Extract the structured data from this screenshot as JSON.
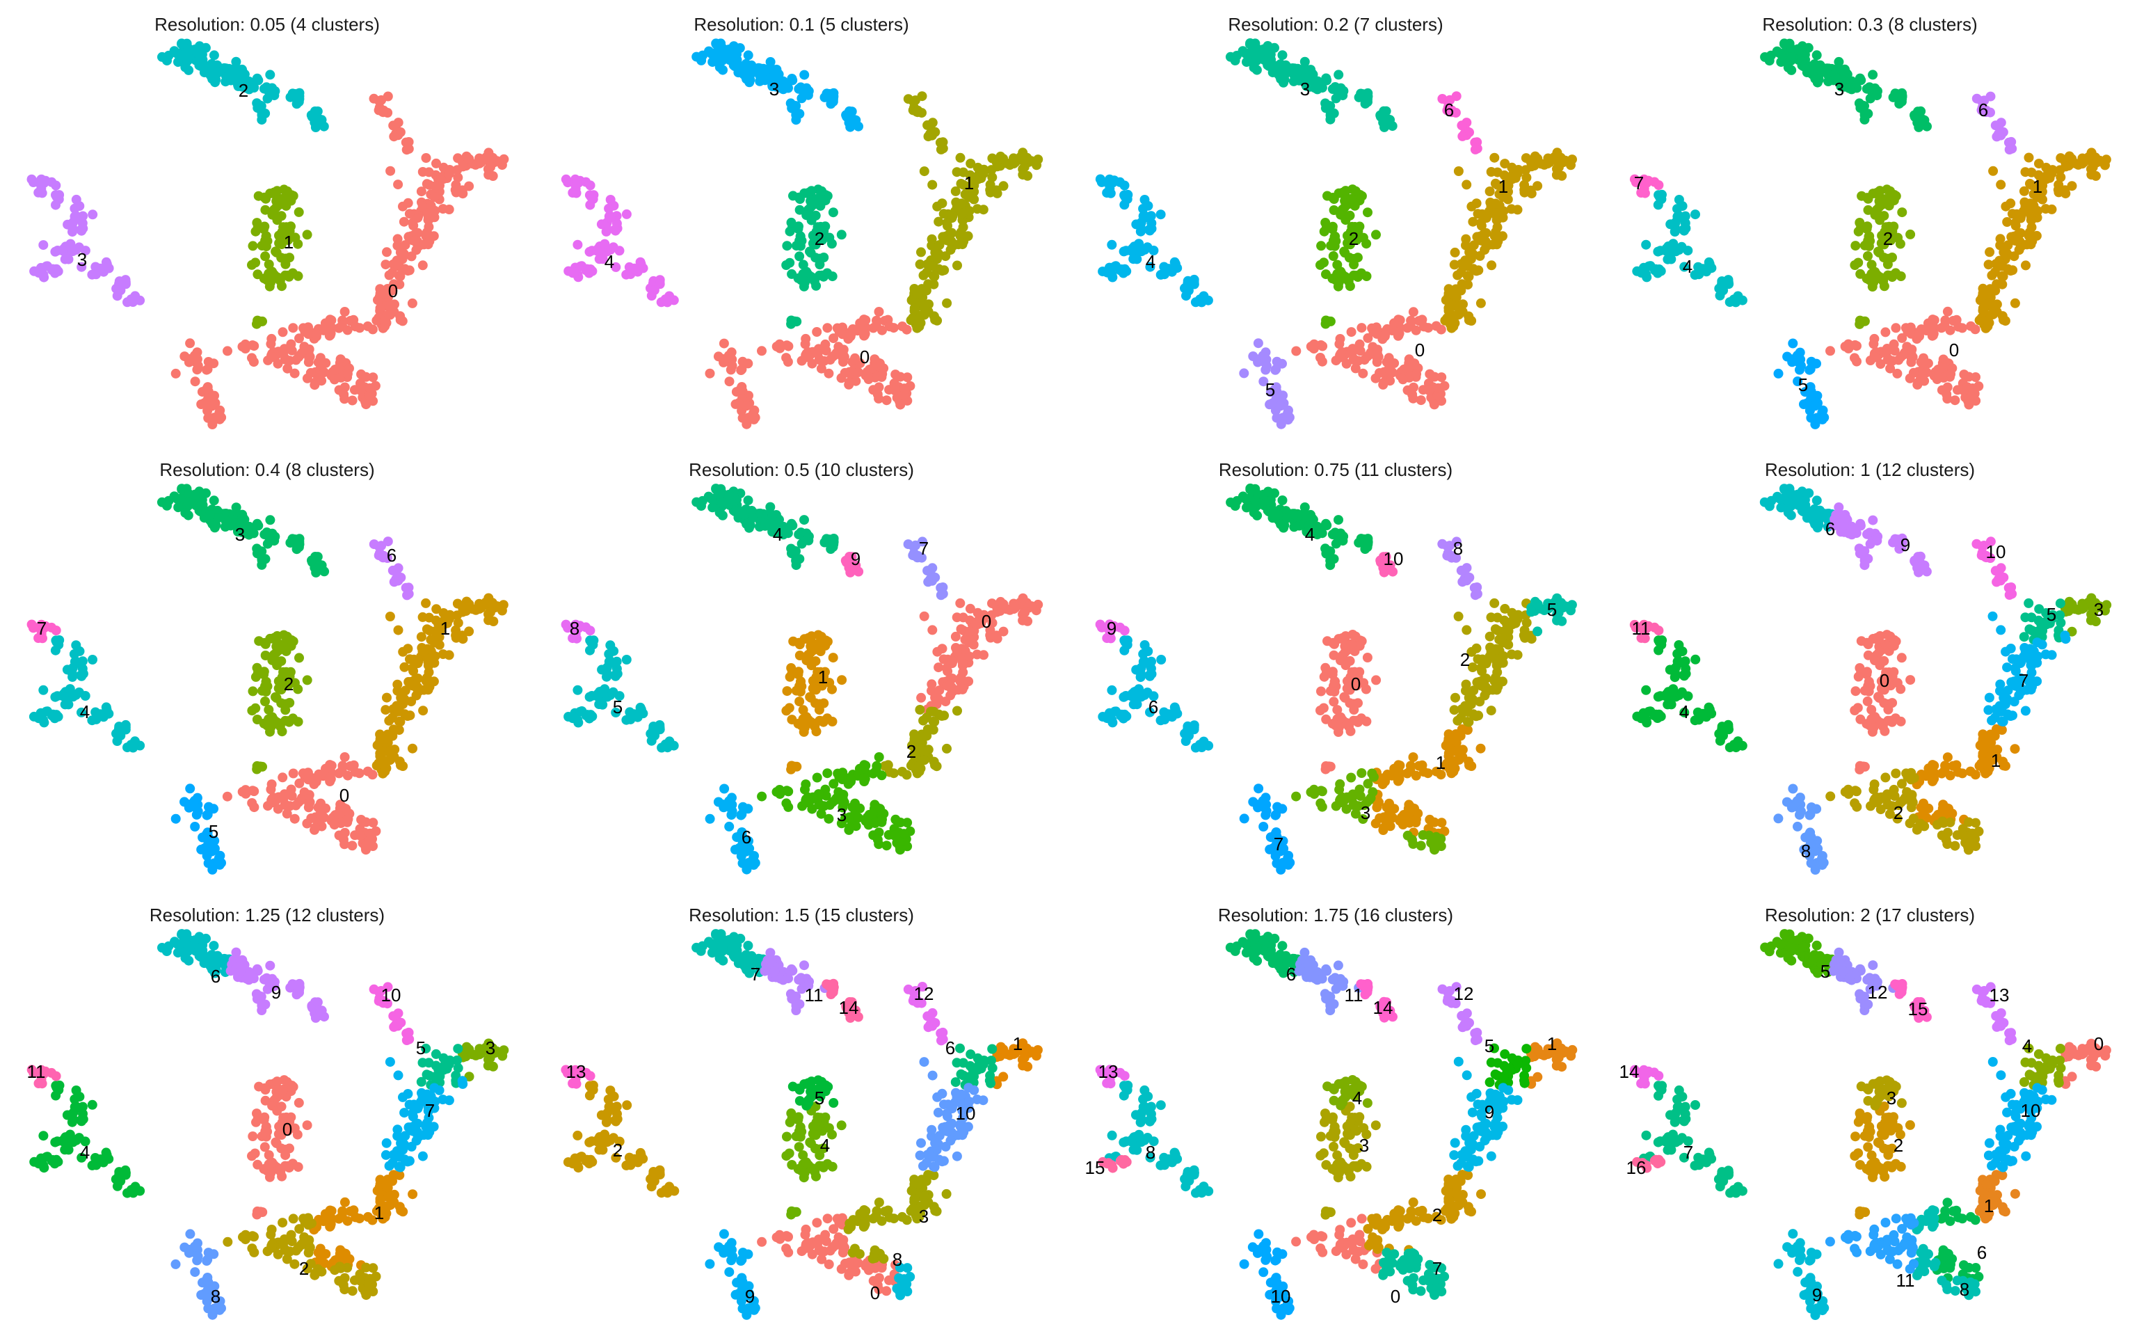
{
  "chart_data": [
    {
      "type": "scatter",
      "title": "Resolution: 0.05 (4 clusters)",
      "grid": false,
      "clusters": [
        {
          "label": "0",
          "color": "#F8766D"
        },
        {
          "label": "1",
          "color": "#7CAE00"
        },
        {
          "label": "2",
          "color": "#00BFC4"
        },
        {
          "label": "3",
          "color": "#C77CFF"
        }
      ]
    },
    {
      "type": "scatter",
      "title": "Resolution: 0.1 (5 clusters)",
      "grid": false,
      "clusters": [
        {
          "label": "0",
          "color": "#F8766D"
        },
        {
          "label": "1",
          "color": "#A3A500"
        },
        {
          "label": "2",
          "color": "#00BF7D"
        },
        {
          "label": "3",
          "color": "#00B0F6"
        },
        {
          "label": "4",
          "color": "#E76BF3"
        }
      ]
    },
    {
      "type": "scatter",
      "title": "Resolution: 0.2 (7 clusters)",
      "grid": false,
      "clusters": [
        {
          "label": "0",
          "color": "#F8766D"
        },
        {
          "label": "1",
          "color": "#C49A00"
        },
        {
          "label": "2",
          "color": "#53B400"
        },
        {
          "label": "3",
          "color": "#00C094"
        },
        {
          "label": "4",
          "color": "#00B6EB"
        },
        {
          "label": "5",
          "color": "#A58AFF"
        },
        {
          "label": "6",
          "color": "#FB61D7"
        }
      ]
    },
    {
      "type": "scatter",
      "title": "Resolution: 0.3 (8 clusters)",
      "grid": false,
      "clusters": [
        {
          "label": "0",
          "color": "#F8766D"
        },
        {
          "label": "1",
          "color": "#CD9600"
        },
        {
          "label": "2",
          "color": "#7CAE00"
        },
        {
          "label": "3",
          "color": "#00BE67"
        },
        {
          "label": "4",
          "color": "#00BFC4"
        },
        {
          "label": "5",
          "color": "#00A9FF"
        },
        {
          "label": "6",
          "color": "#C77CFF"
        },
        {
          "label": "7",
          "color": "#FF61CC"
        }
      ]
    },
    {
      "type": "scatter",
      "title": "Resolution: 0.4 (8 clusters)",
      "grid": false,
      "clusters": [
        {
          "label": "0",
          "color": "#F8766D"
        },
        {
          "label": "1",
          "color": "#CD9600"
        },
        {
          "label": "2",
          "color": "#7CAE00"
        },
        {
          "label": "3",
          "color": "#00BE67"
        },
        {
          "label": "4",
          "color": "#00BFC4"
        },
        {
          "label": "5",
          "color": "#00A9FF"
        },
        {
          "label": "6",
          "color": "#C77CFF"
        },
        {
          "label": "7",
          "color": "#FF61CC"
        }
      ]
    },
    {
      "type": "scatter",
      "title": "Resolution: 0.5 (10 clusters)",
      "grid": false,
      "clusters": [
        {
          "label": "0",
          "color": "#F8766D"
        },
        {
          "label": "1",
          "color": "#D89000"
        },
        {
          "label": "2",
          "color": "#A3A500"
        },
        {
          "label": "3",
          "color": "#39B600"
        },
        {
          "label": "4",
          "color": "#00BF7D"
        },
        {
          "label": "5",
          "color": "#00BFC4"
        },
        {
          "label": "6",
          "color": "#00B0F6"
        },
        {
          "label": "7",
          "color": "#9590FF"
        },
        {
          "label": "8",
          "color": "#E76BF3"
        },
        {
          "label": "9",
          "color": "#FF62BC"
        }
      ]
    },
    {
      "type": "scatter",
      "title": "Resolution: 0.75 (11 clusters)",
      "grid": false,
      "clusters": [
        {
          "label": "0",
          "color": "#F8766D"
        },
        {
          "label": "1",
          "color": "#DB8E00"
        },
        {
          "label": "2",
          "color": "#AEA200"
        },
        {
          "label": "3",
          "color": "#64B200"
        },
        {
          "label": "4",
          "color": "#00BD5C"
        },
        {
          "label": "5",
          "color": "#00C1A7"
        },
        {
          "label": "6",
          "color": "#00BADE"
        },
        {
          "label": "7",
          "color": "#00A6FF"
        },
        {
          "label": "8",
          "color": "#B385FF"
        },
        {
          "label": "9",
          "color": "#EF67EB"
        },
        {
          "label": "10",
          "color": "#FF63B6"
        }
      ]
    },
    {
      "type": "scatter",
      "title": "Resolution: 1 (12 clusters)",
      "grid": false,
      "clusters": [
        {
          "label": "0",
          "color": "#F8766D"
        },
        {
          "label": "1",
          "color": "#DE8C00"
        },
        {
          "label": "2",
          "color": "#B79F00"
        },
        {
          "label": "3",
          "color": "#7CAE00"
        },
        {
          "label": "4",
          "color": "#00BA38"
        },
        {
          "label": "5",
          "color": "#00C08B"
        },
        {
          "label": "6",
          "color": "#00BFC4"
        },
        {
          "label": "7",
          "color": "#00B4F0"
        },
        {
          "label": "8",
          "color": "#619CFF"
        },
        {
          "label": "9",
          "color": "#C77CFF"
        },
        {
          "label": "10",
          "color": "#F564E3"
        },
        {
          "label": "11",
          "color": "#FF64B0"
        }
      ]
    },
    {
      "type": "scatter",
      "title": "Resolution: 1.25 (12 clusters)",
      "grid": false,
      "clusters": [
        {
          "label": "0",
          "color": "#F8766D"
        },
        {
          "label": "1",
          "color": "#DE8C00"
        },
        {
          "label": "2",
          "color": "#B79F00"
        },
        {
          "label": "3",
          "color": "#7CAE00"
        },
        {
          "label": "4",
          "color": "#00BA38"
        },
        {
          "label": "5",
          "color": "#00C08B"
        },
        {
          "label": "6",
          "color": "#00BFC4"
        },
        {
          "label": "7",
          "color": "#00B4F0"
        },
        {
          "label": "8",
          "color": "#619CFF"
        },
        {
          "label": "9",
          "color": "#C77CFF"
        },
        {
          "label": "10",
          "color": "#F564E3"
        },
        {
          "label": "11",
          "color": "#FF64B0"
        }
      ]
    },
    {
      "type": "scatter",
      "title": "Resolution: 1.5 (15 clusters)",
      "grid": false,
      "clusters": [
        {
          "label": "0",
          "color": "#F8766D"
        },
        {
          "label": "1",
          "color": "#E58700"
        },
        {
          "label": "2",
          "color": "#C99800"
        },
        {
          "label": "3",
          "color": "#A3A500"
        },
        {
          "label": "4",
          "color": "#6BB100"
        },
        {
          "label": "5",
          "color": "#00BA38"
        },
        {
          "label": "6",
          "color": "#00BF7D"
        },
        {
          "label": "7",
          "color": "#00C0AF"
        },
        {
          "label": "8",
          "color": "#00BCD8"
        },
        {
          "label": "9",
          "color": "#00B0F6"
        },
        {
          "label": "10",
          "color": "#619CFF"
        },
        {
          "label": "11",
          "color": "#B983FF"
        },
        {
          "label": "12",
          "color": "#E76BF3"
        },
        {
          "label": "13",
          "color": "#FD61D1"
        },
        {
          "label": "14",
          "color": "#FF67A4"
        }
      ]
    },
    {
      "type": "scatter",
      "title": "Resolution: 1.75 (16 clusters)",
      "grid": false,
      "clusters": [
        {
          "label": "0",
          "color": "#F8766D"
        },
        {
          "label": "1",
          "color": "#E68613"
        },
        {
          "label": "2",
          "color": "#CD9600"
        },
        {
          "label": "3",
          "color": "#ABA300"
        },
        {
          "label": "4",
          "color": "#7CAE00"
        },
        {
          "label": "5",
          "color": "#0CB702"
        },
        {
          "label": "6",
          "color": "#00BE67"
        },
        {
          "label": "7",
          "color": "#00C19A"
        },
        {
          "label": "8",
          "color": "#00BFC4"
        },
        {
          "label": "9",
          "color": "#00B8E7"
        },
        {
          "label": "10",
          "color": "#00A9FF"
        },
        {
          "label": "11",
          "color": "#8494FF"
        },
        {
          "label": "12",
          "color": "#C77CFF"
        },
        {
          "label": "13",
          "color": "#ED68ED"
        },
        {
          "label": "14",
          "color": "#FF61CC"
        },
        {
          "label": "15",
          "color": "#FF68A1"
        }
      ]
    },
    {
      "type": "scatter",
      "title": "Resolution: 2 (17 clusters)",
      "grid": false,
      "clusters": [
        {
          "label": "0",
          "color": "#F8766D"
        },
        {
          "label": "1",
          "color": "#E7851E"
        },
        {
          "label": "2",
          "color": "#D09400"
        },
        {
          "label": "3",
          "color": "#B2A100"
        },
        {
          "label": "4",
          "color": "#89AC00"
        },
        {
          "label": "5",
          "color": "#45B500"
        },
        {
          "label": "6",
          "color": "#00BC51"
        },
        {
          "label": "7",
          "color": "#00C087"
        },
        {
          "label": "8",
          "color": "#00C0B2"
        },
        {
          "label": "9",
          "color": "#00BCD6"
        },
        {
          "label": "10",
          "color": "#00B3F2"
        },
        {
          "label": "11",
          "color": "#29A3FF"
        },
        {
          "label": "12",
          "color": "#9C8DFF"
        },
        {
          "label": "13",
          "color": "#D277FF"
        },
        {
          "label": "14",
          "color": "#F166E8"
        },
        {
          "label": "15",
          "color": "#FF61C7"
        },
        {
          "label": "16",
          "color": "#FF689E"
        }
      ]
    }
  ]
}
